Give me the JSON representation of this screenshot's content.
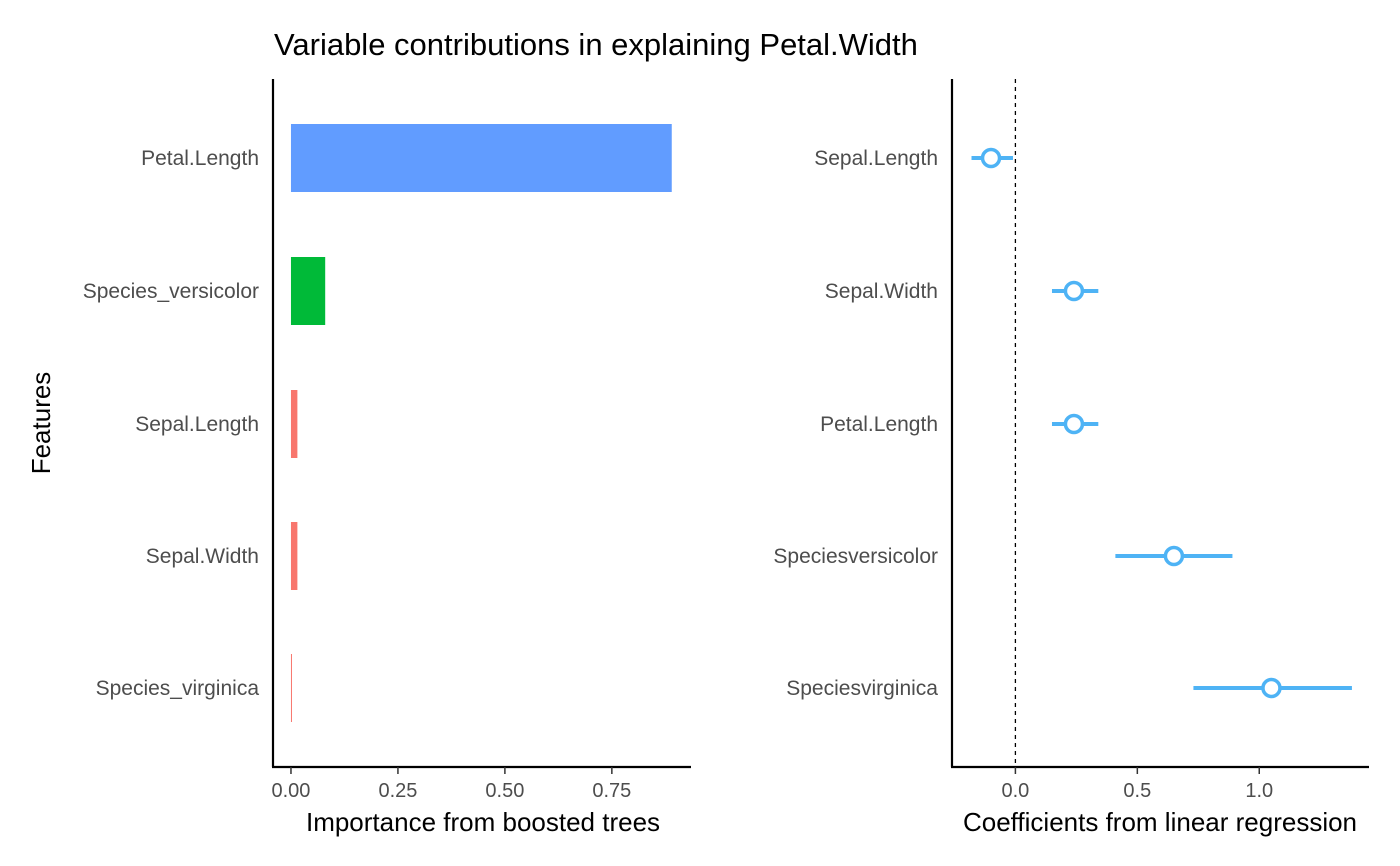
{
  "title": "Variable contributions in explaining Petal.Width",
  "chart_data": [
    {
      "type": "bar",
      "orientation": "horizontal",
      "categories": [
        "Petal.Length",
        "Species_versicolor",
        "Sepal.Length",
        "Sepal.Width",
        "Species_virginica"
      ],
      "values": [
        0.89,
        0.08,
        0.015,
        0.015,
        0.002
      ],
      "colors": [
        "#619CFF",
        "#00BA38",
        "#F8766D",
        "#F8766D",
        "#F8766D"
      ],
      "xlabel": "Importance from boosted trees",
      "ylabel": "Features",
      "xlim": [
        -0.042,
        0.935
      ],
      "xticks": [
        0.0,
        0.25,
        0.5,
        0.75
      ],
      "xtick_labels": [
        "0.00",
        "0.25",
        "0.50",
        "0.75"
      ],
      "grid": false
    },
    {
      "type": "scatter",
      "subtype": "coefficient-plot",
      "categories": [
        "Sepal.Length",
        "Sepal.Width",
        "Petal.Length",
        "Speciesversicolor",
        "Speciesvirginica"
      ],
      "estimates": [
        -0.1,
        0.24,
        0.24,
        0.65,
        1.05
      ],
      "lower": [
        -0.18,
        0.15,
        0.15,
        0.41,
        0.73
      ],
      "upper": [
        -0.01,
        0.34,
        0.34,
        0.89,
        1.38
      ],
      "color": "#4EB3F5",
      "reference_line": 0,
      "xlabel": "Coefficients from linear regression",
      "xlim": [
        -0.26,
        1.45
      ],
      "xticks": [
        0.0,
        0.5,
        1.0
      ],
      "xtick_labels": [
        "0.0",
        "0.5",
        "1.0"
      ],
      "grid": false
    }
  ]
}
